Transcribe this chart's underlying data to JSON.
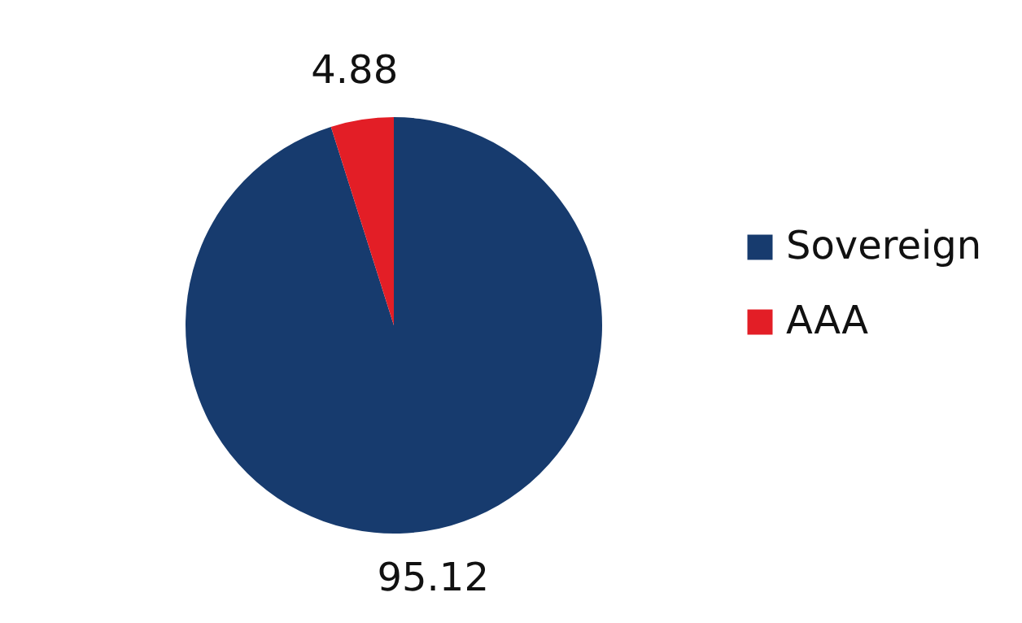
{
  "chart_data": {
    "type": "pie",
    "categories": [
      "Sovereign",
      "AAA"
    ],
    "values": [
      95.12,
      4.88
    ],
    "colors": [
      "#173b6e",
      "#e31e26"
    ],
    "data_labels": true,
    "legend": "right"
  }
}
